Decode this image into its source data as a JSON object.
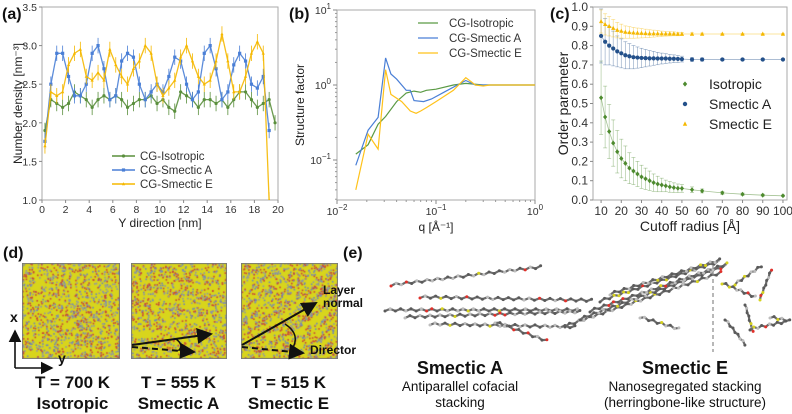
{
  "panel_labels": {
    "a": "(a)",
    "b": "(b)",
    "c": "(c)",
    "d": "(d)",
    "e": "(e)"
  },
  "chart_data": [
    {
      "id": "a",
      "type": "line",
      "xlabel": "Y direction [nm]",
      "ylabel": "Number density [nm⁻³]",
      "xlim": [
        0,
        20
      ],
      "ylim": [
        1.0,
        3.5
      ],
      "xticks": [
        "0",
        "2",
        "4",
        "6",
        "8",
        "10",
        "12",
        "14",
        "16",
        "18",
        "20"
      ],
      "yticks": [
        "1.0",
        "1.5",
        "2.0",
        "2.5",
        "3.0",
        "3.5"
      ],
      "legend_position": "lower-center",
      "error": 0.1,
      "x": [
        0.25,
        0.75,
        1.25,
        1.75,
        2.25,
        2.75,
        3.25,
        3.75,
        4.25,
        4.75,
        5.25,
        5.75,
        6.25,
        6.75,
        7.25,
        7.75,
        8.25,
        8.75,
        9.25,
        9.75,
        10.25,
        10.75,
        11.25,
        11.75,
        12.25,
        12.75,
        13.25,
        13.75,
        14.25,
        14.75,
        15.25,
        15.75,
        16.25,
        16.75,
        17.25,
        17.75,
        18.25,
        18.75,
        19.25,
        19.75
      ],
      "series": [
        {
          "name": "CG-Isotropic",
          "color": "#5a8f3c",
          "marker": "dot",
          "values": [
            1.9,
            2.3,
            2.25,
            2.2,
            2.25,
            2.4,
            2.35,
            2.3,
            2.2,
            2.3,
            2.35,
            2.3,
            2.35,
            2.3,
            2.2,
            2.25,
            2.3,
            2.3,
            2.35,
            2.25,
            2.3,
            2.2,
            2.15,
            2.4,
            2.35,
            2.3,
            2.2,
            2.3,
            2.3,
            2.25,
            2.3,
            2.2,
            2.3,
            2.4,
            2.4,
            2.3,
            2.2,
            2.25,
            2.3,
            2.0
          ]
        },
        {
          "name": "CG-Smectic A",
          "color": "#4a7fd6",
          "marker": "square",
          "values": [
            1.76,
            2.5,
            2.9,
            2.9,
            2.6,
            2.35,
            2.35,
            2.5,
            2.9,
            3.0,
            2.7,
            2.3,
            2.35,
            2.8,
            2.9,
            2.85,
            2.5,
            2.3,
            2.4,
            2.5,
            2.4,
            2.6,
            2.85,
            2.8,
            2.5,
            2.3,
            2.4,
            2.9,
            3.0,
            2.7,
            2.3,
            2.4,
            2.75,
            2.9,
            2.8,
            2.5,
            2.45,
            2.6,
            1.9,
            null
          ]
        },
        {
          "name": "CG-Smectic E",
          "color": "#f5b800",
          "marker": "triangle",
          "values": [
            1.7,
            2.4,
            2.35,
            2.4,
            2.75,
            2.9,
            2.95,
            2.6,
            2.55,
            2.65,
            2.55,
            2.95,
            2.75,
            2.6,
            2.5,
            2.7,
            2.8,
            3.0,
            2.9,
            2.5,
            2.35,
            2.45,
            2.55,
            2.85,
            3.0,
            2.8,
            2.6,
            2.5,
            2.55,
            2.8,
            3.15,
            2.8,
            2.4,
            2.4,
            2.6,
            2.9,
            3.05,
            2.9,
            1.0,
            null
          ]
        }
      ]
    },
    {
      "id": "b",
      "type": "line",
      "xscale": "log",
      "yscale": "log",
      "xlabel": "q [Å⁻¹]",
      "ylabel": "Structure factor",
      "xlim": [
        0.01,
        1
      ],
      "ylim": [
        0.0293,
        10
      ],
      "xticks": [
        {
          "base": "10",
          "exp": "−2"
        },
        {
          "base": "10",
          "exp": "−1"
        },
        {
          "base": "10",
          "exp": "0"
        }
      ],
      "yticks": [
        {
          "base": "10",
          "exp": "−1"
        },
        {
          "base": "10",
          "exp": "0"
        },
        {
          "base": "10",
          "exp": "1"
        }
      ],
      "legend_position": "top-right",
      "series": [
        {
          "name": "CG-Isotropic",
          "color": "#5a9a44",
          "x": [
            0.0155,
            0.0206,
            0.026,
            0.031,
            0.04,
            0.05,
            0.06,
            0.07,
            0.08,
            0.1,
            0.15,
            0.2,
            0.3,
            0.4,
            1.0
          ],
          "values": [
            0.12,
            0.16,
            0.3,
            0.38,
            0.6,
            0.78,
            0.83,
            0.8,
            0.85,
            0.88,
            1.0,
            1.05,
            1.0,
            1.0,
            1.0
          ]
        },
        {
          "name": "CG-Smectic A",
          "color": "#4a7fd6",
          "x": [
            0.0155,
            0.0206,
            0.026,
            0.031,
            0.035,
            0.04,
            0.05,
            0.055,
            0.06,
            0.075,
            0.09,
            0.12,
            0.2,
            0.25,
            0.3,
            1.0
          ],
          "values": [
            0.085,
            0.25,
            0.37,
            2.3,
            1.4,
            1.2,
            0.85,
            0.85,
            0.62,
            0.6,
            0.65,
            0.8,
            1.15,
            1.0,
            1.0,
            1.0
          ]
        },
        {
          "name": "CG-Smectic E",
          "color": "#ffc21a",
          "x": [
            0.0155,
            0.0206,
            0.026,
            0.031,
            0.035,
            0.045,
            0.055,
            0.063,
            0.07,
            0.08,
            0.1,
            0.15,
            0.2,
            0.25,
            0.3,
            0.35,
            1.0
          ],
          "values": [
            0.04,
            0.22,
            0.14,
            1.6,
            0.75,
            0.6,
            0.45,
            0.42,
            0.45,
            0.5,
            0.6,
            0.85,
            1.25,
            1.0,
            0.97,
            1.0,
            1.0
          ]
        }
      ]
    },
    {
      "id": "c",
      "type": "scatter",
      "xlabel": "Cutoff radius [Å]",
      "ylabel": "Order parameter",
      "xlim": [
        6,
        102
      ],
      "ylim": [
        0.0,
        1.0
      ],
      "xticks": [
        "10",
        "20",
        "30",
        "40",
        "50",
        "60",
        "70",
        "80",
        "90",
        "100"
      ],
      "yticks": [
        "0.0",
        "0.1",
        "0.2",
        "0.3",
        "0.4",
        "0.5",
        "0.6",
        "0.7",
        "0.8",
        "0.9",
        "1.0"
      ],
      "legend_position": "center-right",
      "x": [
        10,
        12,
        14,
        16,
        18,
        20,
        22,
        24,
        26,
        28,
        30,
        32,
        34,
        36,
        38,
        40,
        42,
        44,
        46,
        48,
        50,
        55,
        60,
        70,
        80,
        90,
        100
      ],
      "series": [
        {
          "name": "Isotropic",
          "color": "#4d8a2e",
          "marker": "diamond",
          "values": [
            0.53,
            0.43,
            0.355,
            0.295,
            0.25,
            0.215,
            0.19,
            0.165,
            0.15,
            0.135,
            0.12,
            0.11,
            0.1,
            0.09,
            0.083,
            0.078,
            0.073,
            0.068,
            0.064,
            0.061,
            0.06,
            0.053,
            0.047,
            0.037,
            0.03,
            0.025,
            0.022
          ],
          "errors": [
            0.19,
            0.16,
            0.14,
            0.12,
            0.11,
            0.1,
            0.09,
            0.08,
            0.07,
            0.065,
            0.06,
            0.055,
            0.05,
            0.045,
            0.04,
            0.035,
            0.03,
            0.028,
            0.025,
            0.022,
            0.02,
            0.015,
            0.01,
            0.008,
            0.006,
            0.005,
            0.004
          ]
        },
        {
          "name": "Smectic A",
          "color": "#23508a",
          "marker": "circle",
          "values": [
            0.85,
            0.82,
            0.8,
            0.785,
            0.77,
            0.76,
            0.75,
            0.745,
            0.74,
            0.738,
            0.736,
            0.735,
            0.734,
            0.734,
            0.733,
            0.733,
            0.733,
            0.732,
            0.732,
            0.731,
            0.73,
            0.728,
            0.728,
            0.728,
            0.728,
            0.728,
            0.728
          ],
          "errors": [
            0.14,
            0.12,
            0.1,
            0.09,
            0.08,
            0.075,
            0.07,
            0.065,
            0.06,
            0.055,
            0.05,
            0.045,
            0.04,
            0.036,
            0.032,
            0.028,
            0.025,
            0.022,
            0.02,
            0.018,
            0.015,
            0.01,
            0.008,
            0.006,
            0.005,
            0.004,
            0.003
          ]
        },
        {
          "name": "Smectic E",
          "color": "#f5b800",
          "marker": "triangle",
          "values": [
            0.925,
            0.91,
            0.9,
            0.89,
            0.88,
            0.875,
            0.87,
            0.868,
            0.866,
            0.865,
            0.864,
            0.863,
            0.862,
            0.862,
            0.862,
            0.861,
            0.861,
            0.861,
            0.861,
            0.86,
            0.86,
            0.86,
            0.86,
            0.86,
            0.86,
            0.86,
            0.86
          ],
          "errors": [
            0.06,
            0.055,
            0.05,
            0.045,
            0.04,
            0.036,
            0.032,
            0.03,
            0.028,
            0.026,
            0.024,
            0.022,
            0.02,
            0.018,
            0.016,
            0.014,
            0.012,
            0.011,
            0.01,
            0.009,
            0.008,
            0.006,
            0.005,
            0.004,
            0.004,
            0.003,
            0.003
          ]
        }
      ]
    }
  ],
  "panel_d": {
    "axis_x": "x",
    "axis_y": "y",
    "layer_normal_line1": "Layer",
    "layer_normal_line2": "normal",
    "director": "Director",
    "captions": [
      {
        "temp": "T = 700 K",
        "phase": "Isotropic"
      },
      {
        "temp": "T = 555 K",
        "phase": "Smectic A"
      },
      {
        "temp": "T = 515 K",
        "phase": "Smectic E"
      }
    ],
    "colors": {
      "base": "#d8d51c",
      "red": "#c8463a",
      "gray": "#8e94a8",
      "blue": "#6f86b8"
    }
  },
  "panel_e": {
    "smectic_a": {
      "title": "Smectic A",
      "desc_line1": "Antiparallel cofacial",
      "desc_line2": "stacking"
    },
    "smectic_e": {
      "title": "Smectic E",
      "desc_line1": "Nanosegregated stacking",
      "desc_line2": "(herringbone-like structure)"
    }
  }
}
